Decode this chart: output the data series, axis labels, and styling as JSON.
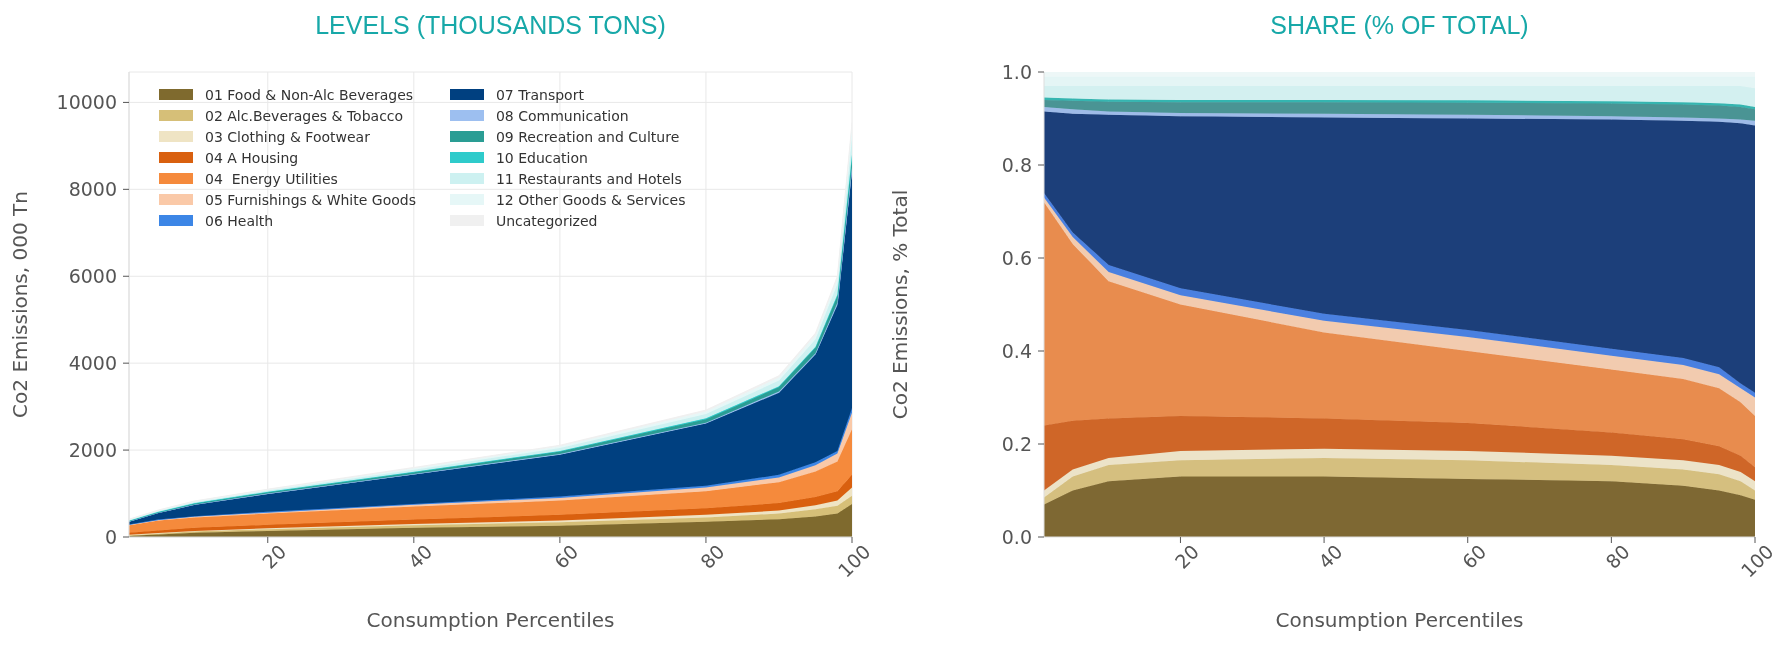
{
  "chart_data": [
    {
      "type": "area",
      "title": "LEVELS (THOUSANDS TONS)",
      "xlabel": "Consumption Percentiles",
      "ylabel": "Co2 Emissions, 000 Tn",
      "stacked": true,
      "legend": "top left",
      "grid": true,
      "x": [
        1,
        5,
        10,
        20,
        40,
        60,
        80,
        90,
        95,
        98,
        100
      ],
      "xlim": [
        1,
        100
      ],
      "xticks": [
        20,
        40,
        60,
        80,
        100
      ],
      "ylim": [
        0,
        10700
      ],
      "yticks": [
        0,
        2000,
        4000,
        6000,
        8000,
        10000
      ],
      "series": [
        {
          "name": "01 Food & Non-Alc Beverages",
          "color": "#7f6a2e",
          "values": [
            30,
            60,
            100,
            140,
            210,
            260,
            350,
            410,
            470,
            540,
            760
          ]
        },
        {
          "name": "02 Alc.Beverages & Tobacco",
          "color": "#d6bf78",
          "values": [
            10,
            20,
            30,
            40,
            60,
            80,
            100,
            130,
            170,
            180,
            190
          ]
        },
        {
          "name": "03 Clothing & Footwear",
          "color": "#efe4c4",
          "values": [
            10,
            10,
            10,
            20,
            30,
            40,
            60,
            70,
            90,
            120,
            190
          ]
        },
        {
          "name": "04 A Housing",
          "color": "#d9600f",
          "values": [
            50,
            60,
            70,
            80,
            100,
            130,
            150,
            170,
            190,
            210,
            290
          ]
        },
        {
          "name": "04  Energy Utilities",
          "color": "#f58a3c",
          "values": [
            170,
            230,
            240,
            260,
            300,
            330,
            390,
            480,
            590,
            690,
            1050
          ]
        },
        {
          "name": "05 Furnishings & White Goods",
          "color": "#fac9a8",
          "values": [
            10,
            10,
            20,
            20,
            40,
            60,
            90,
            110,
            140,
            180,
            380
          ]
        },
        {
          "name": "06 Health",
          "color": "#3c86e6",
          "values": [
            10,
            10,
            10,
            20,
            20,
            30,
            40,
            60,
            70,
            60,
            100
          ]
        },
        {
          "name": "07 Transport",
          "color": "#004080",
          "values": [
            60,
            150,
            260,
            410,
            680,
            960,
            1430,
            1890,
            2480,
            3360,
            5460
          ]
        },
        {
          "name": "08 Communication",
          "color": "#9dbff0",
          "values": [
            10,
            10,
            10,
            10,
            10,
            20,
            20,
            30,
            30,
            50,
            100
          ]
        },
        {
          "name": "09 Recreation and Culture",
          "color": "#2a9d94",
          "values": [
            10,
            10,
            20,
            30,
            40,
            60,
            80,
            100,
            130,
            160,
            240
          ]
        },
        {
          "name": "10 Education",
          "color": "#2ecbcb",
          "values": [
            10,
            10,
            10,
            10,
            10,
            10,
            20,
            20,
            20,
            30,
            50
          ]
        },
        {
          "name": "11 Restaurants and Hotels",
          "color": "#cdf1f1",
          "values": [
            10,
            20,
            20,
            30,
            50,
            70,
            100,
            130,
            170,
            240,
            380
          ]
        },
        {
          "name": "12 Other Goods & Services",
          "color": "#e6f7f7",
          "values": [
            10,
            10,
            20,
            20,
            30,
            40,
            60,
            70,
            90,
            120,
            240
          ]
        },
        {
          "name": "Uncategorized",
          "color": "#f0f0f0",
          "values": [
            10,
            10,
            10,
            10,
            20,
            20,
            30,
            40,
            50,
            60,
            100
          ]
        }
      ]
    },
    {
      "type": "area",
      "title": "SHARE (% OF TOTAL)",
      "xlabel": "Consumption Percentiles",
      "ylabel": "Co2 Emissions, % Total",
      "stacked": true,
      "x": [
        1,
        5,
        10,
        20,
        40,
        60,
        80,
        90,
        95,
        98,
        100
      ],
      "xlim": [
        1,
        100
      ],
      "xticks": [
        20,
        40,
        60,
        80,
        100
      ],
      "ylim": [
        0,
        1
      ],
      "yticks": [
        {
          "value": 0,
          "label": "0.0"
        },
        0.2,
        0.4,
        0.6,
        0.8,
        {
          "value": 1,
          "label": "1.0"
        }
      ],
      "series": [
        {
          "color": "#7e6833",
          "values": [
            0.07,
            0.1,
            0.12,
            0.13,
            0.13,
            0.125,
            0.12,
            0.11,
            0.1,
            0.09,
            0.08
          ]
        },
        {
          "color": "#d5bf7f",
          "values": [
            0.015,
            0.03,
            0.035,
            0.035,
            0.04,
            0.04,
            0.035,
            0.035,
            0.035,
            0.03,
            0.02
          ]
        },
        {
          "color": "#ece3c8",
          "values": [
            0.015,
            0.015,
            0.015,
            0.02,
            0.02,
            0.02,
            0.02,
            0.02,
            0.02,
            0.02,
            0.02
          ]
        },
        {
          "color": "#cf6628",
          "values": [
            0.14,
            0.105,
            0.085,
            0.075,
            0.065,
            0.06,
            0.05,
            0.045,
            0.04,
            0.035,
            0.03
          ]
        },
        {
          "color": "#e88c4e",
          "values": [
            0.48,
            0.38,
            0.295,
            0.24,
            0.185,
            0.155,
            0.135,
            0.13,
            0.125,
            0.115,
            0.11
          ]
        },
        {
          "color": "#f2cbaf",
          "values": [
            0.01,
            0.015,
            0.02,
            0.02,
            0.025,
            0.03,
            0.03,
            0.03,
            0.03,
            0.03,
            0.04
          ]
        },
        {
          "color": "#4a80e0",
          "values": [
            0.01,
            0.01,
            0.015,
            0.015,
            0.015,
            0.015,
            0.015,
            0.015,
            0.015,
            0.01,
            0.01
          ]
        },
        {
          "color": "#1c3f7a",
          "values": [
            0.175,
            0.255,
            0.323,
            0.37,
            0.422,
            0.455,
            0.493,
            0.51,
            0.528,
            0.56,
            0.575
          ]
        },
        {
          "color": "#9ebbe8",
          "values": [
            0.01,
            0.01,
            0.007,
            0.007,
            0.008,
            0.008,
            0.007,
            0.007,
            0.007,
            0.008,
            0.01
          ]
        },
        {
          "color": "#4a9494",
          "values": [
            0.015,
            0.018,
            0.021,
            0.023,
            0.025,
            0.026,
            0.027,
            0.028,
            0.028,
            0.027,
            0.025
          ]
        },
        {
          "color": "#35b5b0",
          "values": [
            0.005,
            0.005,
            0.005,
            0.005,
            0.005,
            0.005,
            0.005,
            0.005,
            0.005,
            0.005,
            0.005
          ]
        },
        {
          "color": "#d3f0f0",
          "values": [
            0.025,
            0.027,
            0.029,
            0.03,
            0.03,
            0.031,
            0.033,
            0.035,
            0.037,
            0.04,
            0.04
          ]
        },
        {
          "color": "#e4f5f5",
          "values": [
            0.02,
            0.02,
            0.02,
            0.02,
            0.02,
            0.02,
            0.02,
            0.02,
            0.02,
            0.02,
            0.025
          ]
        },
        {
          "color": "#edf7f7",
          "values": [
            0.01,
            0.01,
            0.01,
            0.01,
            0.01,
            0.01,
            0.01,
            0.01,
            0.01,
            0.01,
            0.01
          ]
        }
      ]
    }
  ]
}
